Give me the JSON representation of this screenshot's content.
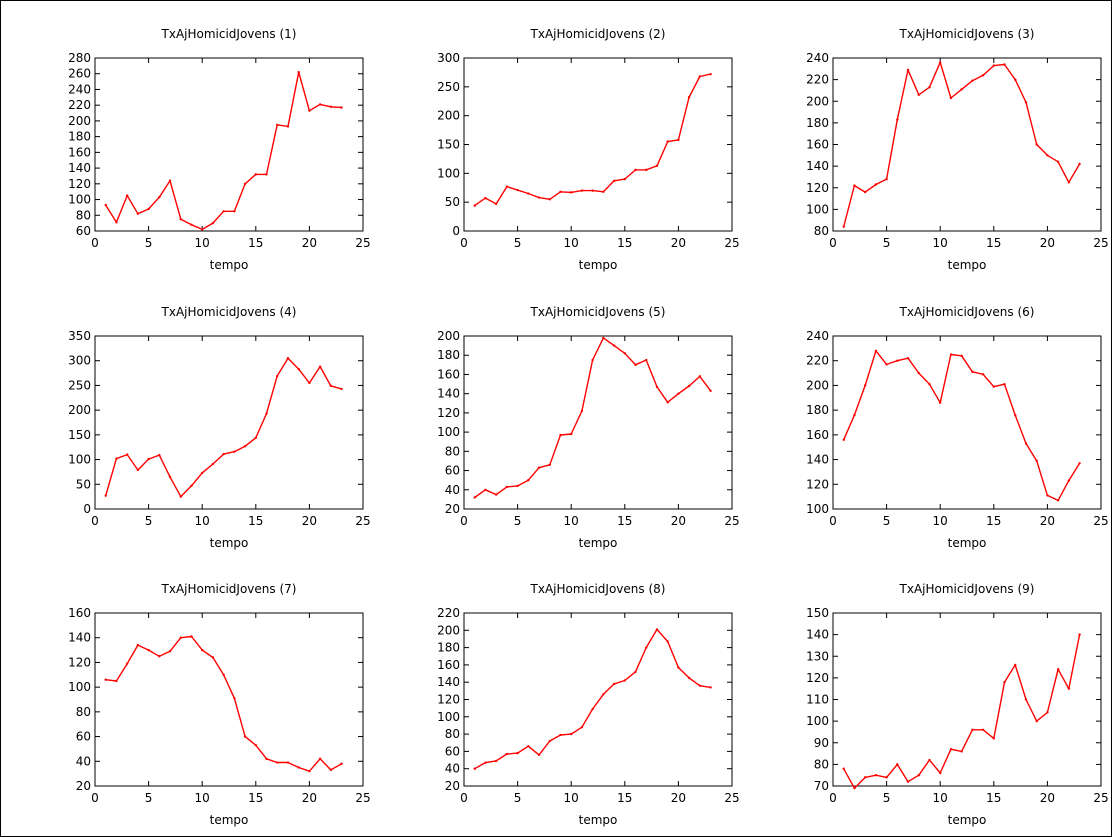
{
  "chart_data": [
    {
      "type": "line",
      "title": "TxAjHomicidJovens (1)",
      "xlabel": "tempo",
      "ylabel": "",
      "xlim": [
        0,
        25
      ],
      "ylim": [
        60,
        280
      ],
      "xticks": [
        "0",
        "5",
        "10",
        "15",
        "20",
        "25"
      ],
      "yticks": [
        "60",
        "80",
        "100",
        "120",
        "140",
        "160",
        "180",
        "200",
        "220",
        "240",
        "260",
        "280"
      ],
      "x": [
        1,
        2,
        3,
        4,
        5,
        6,
        7,
        8,
        9,
        10,
        11,
        12,
        13,
        14,
        15,
        16,
        17,
        18,
        19,
        20,
        21,
        22,
        23
      ],
      "series": [
        {
          "color": "#ff0000",
          "values": [
            93,
            71,
            105,
            82,
            88,
            103,
            124,
            75,
            68,
            62,
            70,
            85,
            85,
            120,
            132,
            132,
            195,
            193,
            262,
            213,
            221,
            218,
            217
          ]
        }
      ]
    },
    {
      "type": "line",
      "title": "TxAjHomicidJovens (2)",
      "xlabel": "tempo",
      "ylabel": "",
      "xlim": [
        0,
        25
      ],
      "ylim": [
        0,
        300
      ],
      "xticks": [
        "0",
        "5",
        "10",
        "15",
        "20",
        "25"
      ],
      "yticks": [
        "0",
        "50",
        "100",
        "150",
        "200",
        "250",
        "300"
      ],
      "x": [
        1,
        2,
        3,
        4,
        5,
        6,
        7,
        8,
        9,
        10,
        11,
        12,
        13,
        14,
        15,
        16,
        17,
        18,
        19,
        20,
        21,
        22,
        23
      ],
      "series": [
        {
          "color": "#ff0000",
          "values": [
            44,
            57,
            47,
            77,
            71,
            65,
            58,
            55,
            68,
            67,
            70,
            70,
            68,
            87,
            90,
            106,
            106,
            113,
            155,
            158,
            232,
            268,
            272
          ]
        }
      ]
    },
    {
      "type": "line",
      "title": "TxAjHomicidJovens (3)",
      "xlabel": "tempo",
      "ylabel": "",
      "xlim": [
        0,
        25
      ],
      "ylim": [
        80,
        240
      ],
      "xticks": [
        "0",
        "5",
        "10",
        "15",
        "20",
        "25"
      ],
      "yticks": [
        "80",
        "100",
        "120",
        "140",
        "160",
        "180",
        "200",
        "220",
        "240"
      ],
      "x": [
        1,
        2,
        3,
        4,
        5,
        6,
        7,
        8,
        9,
        10,
        11,
        12,
        13,
        14,
        15,
        16,
        17,
        18,
        19,
        20,
        21,
        22,
        23
      ],
      "series": [
        {
          "color": "#ff0000",
          "values": [
            84,
            122,
            116,
            123,
            128,
            183,
            229,
            206,
            213,
            236,
            203,
            211,
            219,
            224,
            233,
            234,
            220,
            199,
            160,
            150,
            144,
            125,
            142
          ]
        }
      ]
    },
    {
      "type": "line",
      "title": "TxAjHomicidJovens (4)",
      "xlabel": "tempo",
      "ylabel": "",
      "xlim": [
        0,
        25
      ],
      "ylim": [
        0,
        350
      ],
      "xticks": [
        "0",
        "5",
        "10",
        "15",
        "20",
        "25"
      ],
      "yticks": [
        "0",
        "50",
        "100",
        "150",
        "200",
        "250",
        "300",
        "350"
      ],
      "x": [
        1,
        2,
        3,
        4,
        5,
        6,
        7,
        8,
        9,
        10,
        11,
        12,
        13,
        14,
        15,
        16,
        17,
        18,
        19,
        20,
        21,
        22,
        23
      ],
      "series": [
        {
          "color": "#ff0000",
          "values": [
            27,
            102,
            110,
            79,
            101,
            109,
            65,
            25,
            47,
            73,
            91,
            111,
            116,
            127,
            144,
            193,
            269,
            305,
            283,
            255,
            288,
            249,
            243
          ]
        }
      ]
    },
    {
      "type": "line",
      "title": "TxAjHomicidJovens (5)",
      "xlabel": "tempo",
      "ylabel": "",
      "xlim": [
        0,
        25
      ],
      "ylim": [
        20,
        200
      ],
      "xticks": [
        "0",
        "5",
        "10",
        "15",
        "20",
        "25"
      ],
      "yticks": [
        "20",
        "40",
        "60",
        "80",
        "100",
        "120",
        "140",
        "160",
        "180",
        "200"
      ],
      "x": [
        1,
        2,
        3,
        4,
        5,
        6,
        7,
        8,
        9,
        10,
        11,
        12,
        13,
        14,
        15,
        16,
        17,
        18,
        19,
        20,
        21,
        22,
        23
      ],
      "series": [
        {
          "color": "#ff0000",
          "values": [
            32,
            40,
            35,
            43,
            44,
            50,
            63,
            66,
            97,
            98,
            122,
            175,
            198,
            190,
            182,
            170,
            175,
            147,
            131,
            140,
            148,
            158,
            143
          ]
        }
      ]
    },
    {
      "type": "line",
      "title": "TxAjHomicidJovens (6)",
      "xlabel": "tempo",
      "ylabel": "",
      "xlim": [
        0,
        25
      ],
      "ylim": [
        100,
        240
      ],
      "xticks": [
        "0",
        "5",
        "10",
        "15",
        "20",
        "25"
      ],
      "yticks": [
        "100",
        "120",
        "140",
        "160",
        "180",
        "200",
        "220",
        "240"
      ],
      "x": [
        1,
        2,
        3,
        4,
        5,
        6,
        7,
        8,
        9,
        10,
        11,
        12,
        13,
        14,
        15,
        16,
        17,
        18,
        19,
        20,
        21,
        22,
        23
      ],
      "series": [
        {
          "color": "#ff0000",
          "values": [
            156,
            176,
            200,
            228,
            217,
            220,
            222,
            210,
            201,
            186,
            225,
            224,
            211,
            209,
            199,
            201,
            176,
            153,
            139,
            111,
            107,
            123,
            137
          ]
        }
      ]
    },
    {
      "type": "line",
      "title": "TxAjHomicidJovens (7)",
      "xlabel": "tempo",
      "ylabel": "",
      "xlim": [
        0,
        25
      ],
      "ylim": [
        20,
        160
      ],
      "xticks": [
        "0",
        "5",
        "10",
        "15",
        "20",
        "25"
      ],
      "yticks": [
        "20",
        "40",
        "60",
        "80",
        "100",
        "120",
        "140",
        "160"
      ],
      "x": [
        1,
        2,
        3,
        4,
        5,
        6,
        7,
        8,
        9,
        10,
        11,
        12,
        13,
        14,
        15,
        16,
        17,
        18,
        19,
        20,
        21,
        22,
        23
      ],
      "series": [
        {
          "color": "#ff0000",
          "values": [
            106,
            105,
            119,
            134,
            130,
            125,
            129,
            140,
            141,
            130,
            124,
            110,
            91,
            60,
            53,
            42,
            39,
            39,
            35,
            32,
            42,
            33,
            38
          ]
        }
      ]
    },
    {
      "type": "line",
      "title": "TxAjHomicidJovens (8)",
      "xlabel": "tempo",
      "ylabel": "",
      "xlim": [
        0,
        25
      ],
      "ylim": [
        20,
        220
      ],
      "xticks": [
        "0",
        "5",
        "10",
        "15",
        "20",
        "25"
      ],
      "yticks": [
        "20",
        "40",
        "60",
        "80",
        "100",
        "120",
        "140",
        "160",
        "180",
        "200",
        "220"
      ],
      "x": [
        1,
        2,
        3,
        4,
        5,
        6,
        7,
        8,
        9,
        10,
        11,
        12,
        13,
        14,
        15,
        16,
        17,
        18,
        19,
        20,
        21,
        22,
        23
      ],
      "series": [
        {
          "color": "#ff0000",
          "values": [
            40,
            47,
            49,
            57,
            58,
            66,
            56,
            72,
            79,
            80,
            88,
            109,
            126,
            138,
            142,
            152,
            180,
            201,
            187,
            157,
            145,
            136,
            134
          ]
        }
      ]
    },
    {
      "type": "line",
      "title": "TxAjHomicidJovens (9)",
      "xlabel": "tempo",
      "ylabel": "",
      "xlim": [
        0,
        25
      ],
      "ylim": [
        70,
        150
      ],
      "xticks": [
        "0",
        "5",
        "10",
        "15",
        "20",
        "25"
      ],
      "yticks": [
        "70",
        "80",
        "90",
        "100",
        "110",
        "120",
        "130",
        "140",
        "150"
      ],
      "x": [
        1,
        2,
        3,
        4,
        5,
        6,
        7,
        8,
        9,
        10,
        11,
        12,
        13,
        14,
        15,
        16,
        17,
        18,
        19,
        20,
        21,
        22,
        23
      ],
      "series": [
        {
          "color": "#ff0000",
          "values": [
            78,
            69,
            74,
            75,
            74,
            80,
            72,
            75,
            82,
            76,
            87,
            86,
            96,
            96,
            92,
            118,
            126,
            110,
            100,
            104,
            124,
            115,
            140
          ]
        }
      ]
    }
  ]
}
